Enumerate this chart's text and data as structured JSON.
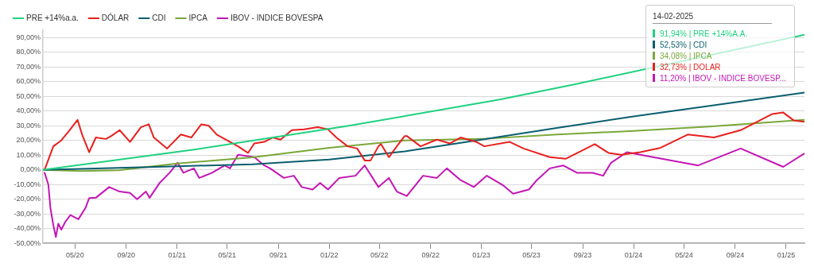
{
  "chart_data": {
    "type": "line",
    "legend": "top left",
    "grid": "y",
    "marker": "none",
    "line_style": "solid",
    "xlim": [
      "2020-02-14",
      "2025-02-14"
    ],
    "xticks": [
      {
        "value": "2020-05-01",
        "label": "05/20"
      },
      {
        "value": "2020-09-01",
        "label": "09/20"
      },
      {
        "value": "2021-01-01",
        "label": "01/21"
      },
      {
        "value": "2021-05-01",
        "label": "05/21"
      },
      {
        "value": "2021-09-01",
        "label": "09/21"
      },
      {
        "value": "2022-01-01",
        "label": "01/22"
      },
      {
        "value": "2022-05-01",
        "label": "05/22"
      },
      {
        "value": "2022-09-01",
        "label": "09/22"
      },
      {
        "value": "2023-01-01",
        "label": "01/23"
      },
      {
        "value": "2023-05-01",
        "label": "05/23"
      },
      {
        "value": "2023-09-01",
        "label": "09/23"
      },
      {
        "value": "2024-01-01",
        "label": "01/24"
      },
      {
        "value": "2024-05-01",
        "label": "05/24"
      },
      {
        "value": "2024-09-01",
        "label": "09/24"
      },
      {
        "value": "2025-01-01",
        "label": "01/25"
      }
    ],
    "ylim": [
      -50,
      95
    ],
    "yticks": [
      {
        "value": -50,
        "label": "-50,00%"
      },
      {
        "value": -40,
        "label": "-40,00%"
      },
      {
        "value": -30,
        "label": "-30,00%"
      },
      {
        "value": -20,
        "label": "-20,00%"
      },
      {
        "value": -10,
        "label": "-10,00%"
      },
      {
        "value": 0,
        "label": "0,00%"
      },
      {
        "value": 10,
        "label": "10,00%"
      },
      {
        "value": 20,
        "label": "20,00%"
      },
      {
        "value": 30,
        "label": "30,00%"
      },
      {
        "value": 40,
        "label": "40,00%"
      },
      {
        "value": 50,
        "label": "50,00%"
      },
      {
        "value": 60,
        "label": "60,00%"
      },
      {
        "value": 70,
        "label": "70,00%"
      },
      {
        "value": 80,
        "label": "80,00%"
      },
      {
        "value": 90,
        "label": "90,00%"
      }
    ],
    "series": [
      {
        "name": "PRE +14%a.a.",
        "color": "#1fd17f",
        "x": [
          "2020-02-14",
          "2021-02-14",
          "2022-02-14",
          "2023-02-14",
          "2023-08-14",
          "2025-02-14"
        ],
        "values": [
          0,
          13.9,
          29.8,
          47.8,
          58.2,
          91.94
        ]
      },
      {
        "name": "DÓLAR",
        "color": "#e8201e",
        "x": [
          "2020-02-18",
          "2020-03-10",
          "2020-03-29",
          "2020-04-18",
          "2020-05-07",
          "2020-05-18",
          "2020-06-04",
          "2020-06-20",
          "2020-07-14",
          "2020-07-27",
          "2020-08-16",
          "2020-09-10",
          "2020-10-06",
          "2020-10-25",
          "2020-11-06",
          "2020-12-08",
          "2021-01-10",
          "2021-02-04",
          "2021-02-28",
          "2021-03-18",
          "2021-04-06",
          "2021-05-08",
          "2021-05-27",
          "2021-06-20",
          "2021-07-05",
          "2021-07-29",
          "2021-08-18",
          "2021-09-06",
          "2021-10-03",
          "2021-11-02",
          "2021-12-04",
          "2021-12-29",
          "2022-01-18",
          "2022-02-14",
          "2022-03-09",
          "2022-03-27",
          "2022-04-10",
          "2022-04-29",
          "2022-05-05",
          "2022-05-24",
          "2022-06-12",
          "2022-07-01",
          "2022-07-06",
          "2022-08-08",
          "2022-09-16",
          "2022-10-18",
          "2022-11-12",
          "2022-12-20",
          "2023-01-08",
          "2023-03-10",
          "2023-04-12",
          "2023-06-14",
          "2023-07-22",
          "2023-09-30",
          "2023-11-02",
          "2023-12-02",
          "2024-01-17",
          "2024-03-06",
          "2024-05-10",
          "2024-07-12",
          "2024-09-14",
          "2024-11-29",
          "2024-12-25",
          "2025-01-19",
          "2025-02-14"
        ],
        "values": [
          0,
          16,
          20,
          27,
          34,
          24,
          12,
          22,
          21,
          23,
          27,
          19,
          29,
          31,
          22,
          14.5,
          24,
          22,
          31,
          30,
          24,
          19,
          16,
          11.5,
          18,
          19,
          22,
          20.5,
          27,
          27.5,
          29,
          27.5,
          22,
          16,
          14.5,
          6.4,
          6.4,
          16,
          17.5,
          8.6,
          16,
          23,
          23,
          16,
          20.5,
          18,
          22,
          19,
          16,
          19,
          14.5,
          8.6,
          7.5,
          17.5,
          11.5,
          10.3,
          12,
          15,
          24,
          22,
          27,
          38,
          39,
          33.7,
          32.73
        ]
      },
      {
        "name": "CDI",
        "color": "#0a5e6e",
        "x": [
          "2020-02-14",
          "2020-08-14",
          "2021-01-01",
          "2021-07-01",
          "2022-01-01",
          "2022-07-01",
          "2023-01-01",
          "2023-07-01",
          "2024-01-01",
          "2024-07-01",
          "2025-02-14"
        ],
        "values": [
          0,
          1.3,
          2.4,
          3.8,
          7,
          12.5,
          20.5,
          28.5,
          36.3,
          43.5,
          52.53
        ]
      },
      {
        "name": "IPCA",
        "color": "#7aa83a",
        "x": [
          "2020-02-14",
          "2020-05-15",
          "2020-08-14",
          "2021-01-01",
          "2021-07-01",
          "2022-01-01",
          "2022-07-01",
          "2023-01-01",
          "2023-07-01",
          "2024-01-01",
          "2024-07-01",
          "2025-02-14"
        ],
        "values": [
          0,
          -0.8,
          -0.3,
          4.3,
          8.5,
          15,
          20,
          21,
          24,
          26.5,
          29.5,
          34.08
        ]
      },
      {
        "name": "IBOV - INDICE BOVESPA",
        "color": "#c415b5",
        "x": [
          "2020-02-18",
          "2020-02-27",
          "2020-03-03",
          "2020-03-10",
          "2020-03-16",
          "2020-03-22",
          "2020-03-29",
          "2020-04-08",
          "2020-04-20",
          "2020-05-09",
          "2020-05-26",
          "2020-06-04",
          "2020-06-20",
          "2020-07-22",
          "2020-08-16",
          "2020-09-10",
          "2020-09-27",
          "2020-10-18",
          "2020-10-27",
          "2020-11-20",
          "2020-12-14",
          "2021-01-02",
          "2021-01-16",
          "2021-02-10",
          "2021-02-23",
          "2021-03-26",
          "2021-04-25",
          "2021-05-08",
          "2021-05-27",
          "2021-07-05",
          "2021-07-29",
          "2021-08-12",
          "2021-09-14",
          "2021-10-08",
          "2021-10-27",
          "2021-11-22",
          "2021-12-10",
          "2021-12-29",
          "2022-01-25",
          "2022-03-05",
          "2022-03-27",
          "2022-04-29",
          "2022-05-24",
          "2022-06-12",
          "2022-07-06",
          "2022-08-14",
          "2022-09-16",
          "2022-10-10",
          "2022-11-12",
          "2022-12-14",
          "2023-01-14",
          "2023-02-21",
          "2023-03-18",
          "2023-04-25",
          "2023-05-14",
          "2023-06-14",
          "2023-07-16",
          "2023-08-18",
          "2023-09-25",
          "2023-10-20",
          "2023-11-08",
          "2023-12-16",
          "2024-01-17",
          "2024-06-04",
          "2024-09-14",
          "2024-12-25",
          "2025-02-14"
        ],
        "values": [
          -2,
          -10,
          -26,
          -37.6,
          -45.7,
          -36.6,
          -40.7,
          -35.3,
          -30.8,
          -33.6,
          -26,
          -19.2,
          -19,
          -11.7,
          -14.8,
          -15.7,
          -20,
          -14.8,
          -19,
          -8.9,
          -2,
          4.8,
          -2,
          1,
          -5.5,
          -2,
          3,
          1,
          10.3,
          8.6,
          3,
          1,
          -5.5,
          -4,
          -11.7,
          -13.4,
          -8.9,
          -13.4,
          -5.5,
          -4,
          3,
          -11.7,
          -5.5,
          -14.8,
          -17.8,
          -4,
          -5.5,
          1,
          -7,
          -11.7,
          -4,
          -10.3,
          -16.2,
          -13.4,
          -7,
          1,
          3,
          -2,
          -2,
          -4,
          4.8,
          12,
          10.3,
          3,
          14.5,
          2,
          11.2
        ]
      }
    ],
    "annotations": [
      "14-02-2025",
      "91,94%  | PRE +14%A.A.",
      "52,53%  | CDI",
      "34,08%  | IPCA",
      "32,73%  | DOLAR",
      "11,20%  | IBOV - INDICE BOVESP..."
    ]
  }
}
